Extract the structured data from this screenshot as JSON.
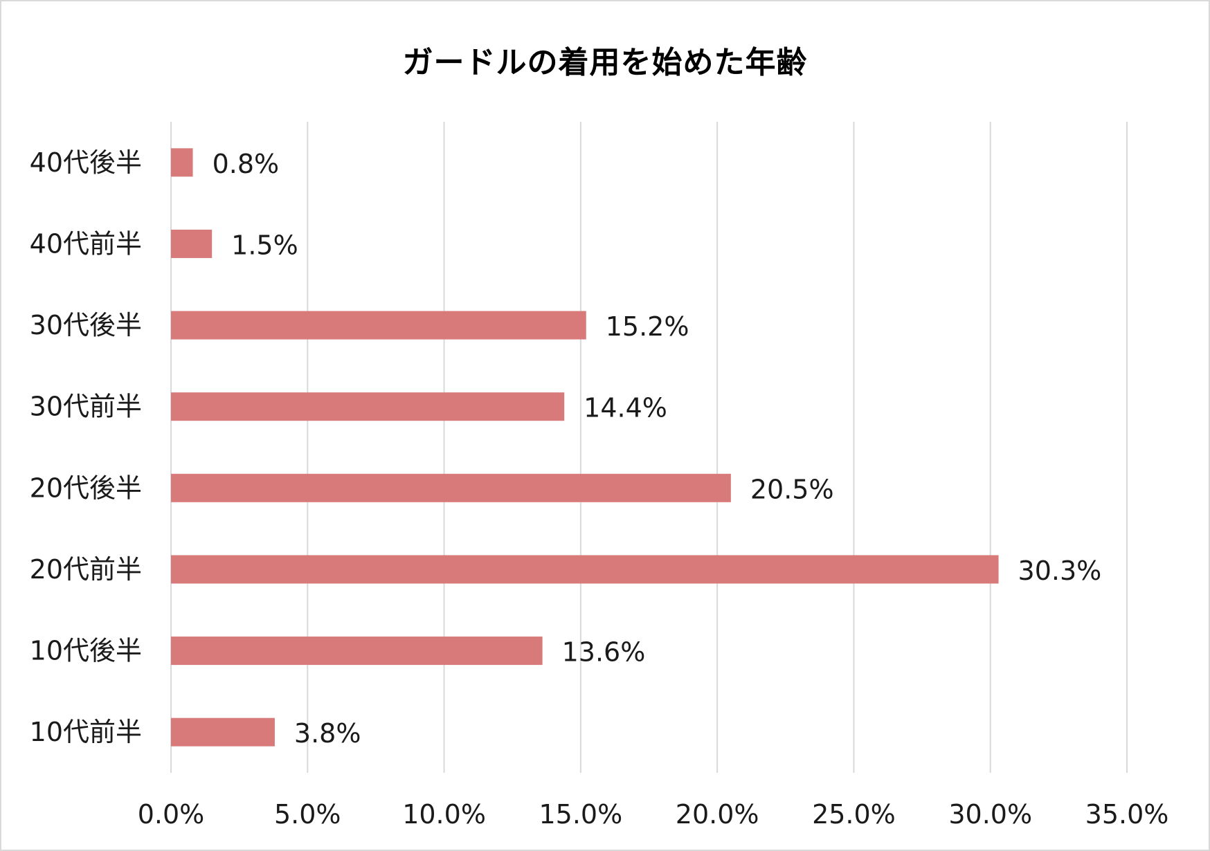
{
  "chart_data": {
    "type": "bar",
    "orientation": "horizontal",
    "title": "ガードルの着用を始めた年齢",
    "categories": [
      "40代後半",
      "40代前半",
      "30代後半",
      "30代前半",
      "20代後半",
      "20代前半",
      "10代後半",
      "10代前半"
    ],
    "values": [
      0.8,
      1.5,
      15.2,
      14.4,
      20.5,
      30.3,
      13.6,
      3.8
    ],
    "data_labels": [
      "0.8%",
      "1.5%",
      "15.2%",
      "14.4%",
      "20.5%",
      "30.3%",
      "13.6%",
      "3.8%"
    ],
    "x_ticks": [
      "0.0%",
      "5.0%",
      "10.0%",
      "15.0%",
      "20.0%",
      "25.0%",
      "30.0%",
      "35.0%"
    ],
    "xlim": [
      0,
      35
    ],
    "grid": true,
    "legend": "none",
    "bar_color": "#d87a7a",
    "grid_color": "#d9d9d9"
  }
}
